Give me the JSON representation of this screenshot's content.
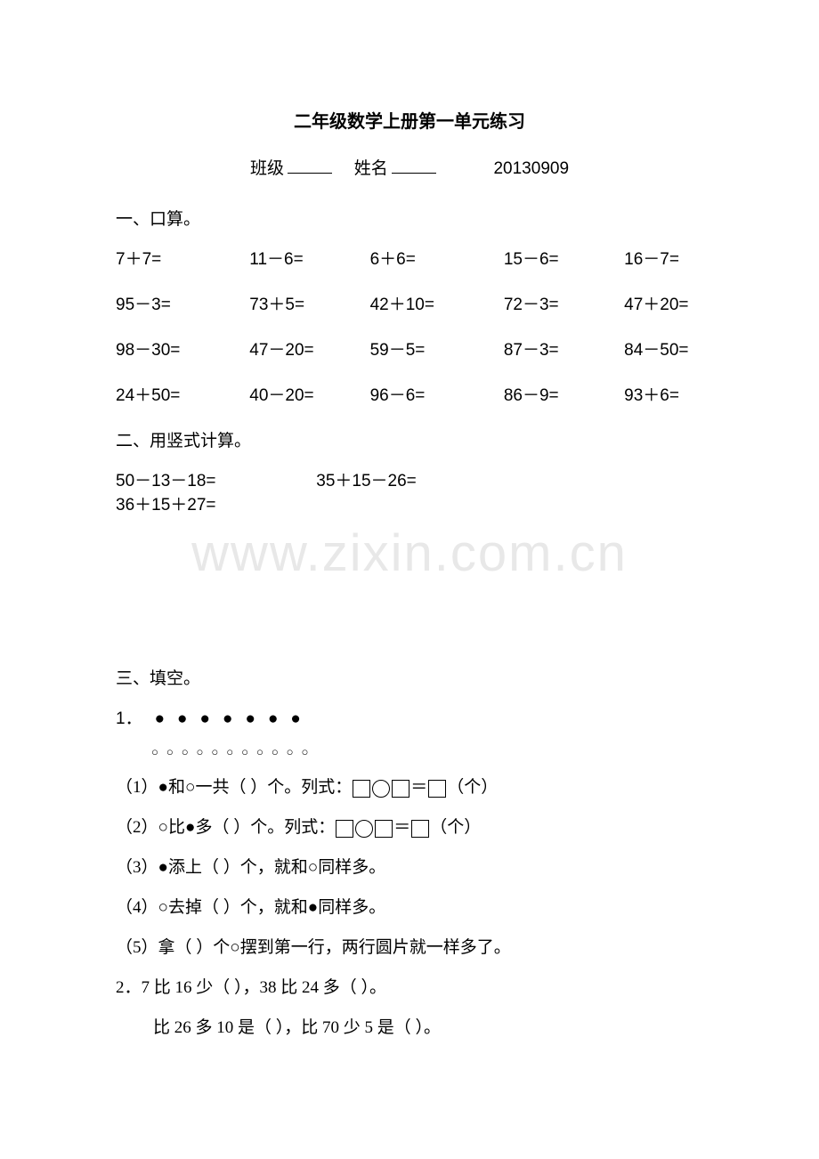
{
  "title": "二年级数学上册第一单元练习",
  "header": {
    "class_label": "班级",
    "name_label": "姓名",
    "date": "20130909"
  },
  "section1": {
    "header": "一、口算。",
    "rows": [
      [
        "7＋7=",
        "11－6=",
        "6＋6=",
        "15－6=",
        "16－7="
      ],
      [
        "95－3=",
        "73＋5=",
        "42＋10=",
        "72－3=",
        "47＋20="
      ],
      [
        "98－30=",
        "47－20=",
        "59－5=",
        "87－3=",
        "84－50="
      ],
      [
        "24＋50=",
        "40－20=",
        "96－6=",
        "86－9=",
        "93＋6="
      ]
    ]
  },
  "section2": {
    "header": "二、用竖式计算。",
    "problems": [
      "50－13－18=",
      "35＋15－26=",
      "36＋15＋27="
    ]
  },
  "watermark": "www.zixin.com.cn",
  "section3": {
    "header": "三、填空。",
    "q1_num": "1．",
    "q1_filled": "●●●●●●●",
    "q1_empty": "○○○○○○○○○○○",
    "q1_1_pre": "（1）●和○一共（   ）个。列式：",
    "q1_1_post": "（个）",
    "q1_2_pre": "（2）○比●多（   ）个。列式：",
    "q1_2_post": "（个）",
    "q1_3": "（3）●添上（   ）个，就和○同样多。",
    "q1_4": "（4）○去掉（   ）个，就和●同样多。",
    "q1_5": "（5）拿（   ）个○摆到第一行，两行圆片就一样多了。",
    "q2": "2．7 比 16 少（   ），38 比 24 多（   ）。",
    "q2b": "比 26 多 10 是（   ），比 70 少 5 是（   ）。",
    "equals": "＝"
  }
}
